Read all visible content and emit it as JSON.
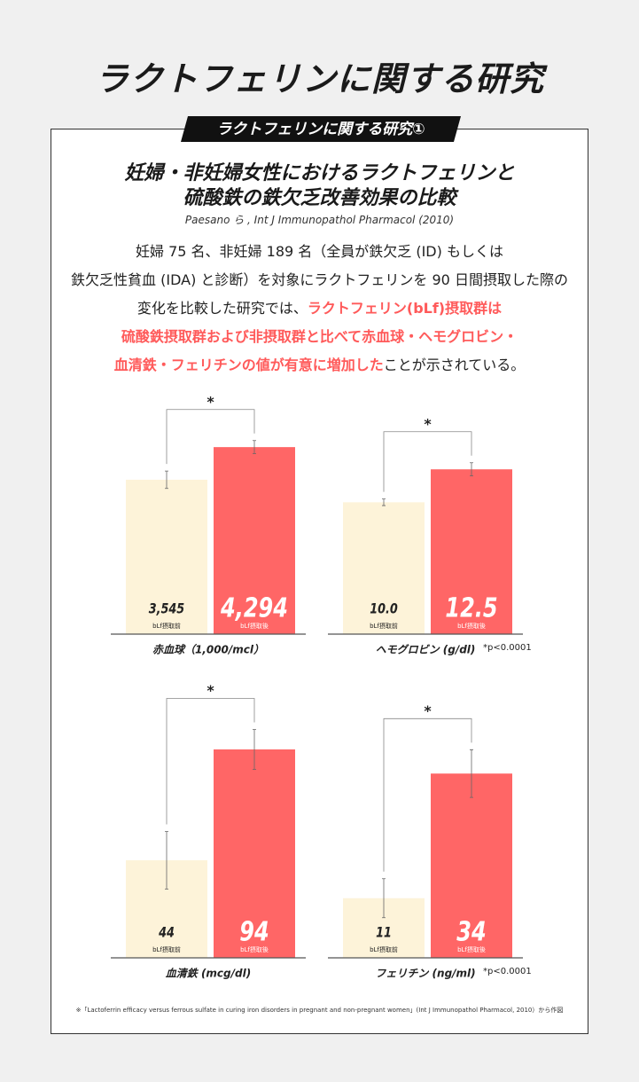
{
  "header": {
    "title": "ラクトフェリンに関する研究",
    "tab": "ラクトフェリンに関する研究①"
  },
  "study": {
    "title_lines": [
      "妊婦・非妊婦女性におけるラクトフェリンと",
      "硫酸鉄の鉄欠乏改善効果の比較"
    ],
    "citation": "Paesano ら , Int J Immunopathol Pharmacol (2010)",
    "paragraph": [
      [
        {
          "text": "妊婦 75 名、非妊婦 189 名（全員が鉄欠乏 (ID) もしくは",
          "highlight": false
        }
      ],
      [
        {
          "text": "鉄欠乏性貧血 (IDA) と診断）を対象にラクトフェリンを 90 日間摂取した際の",
          "highlight": false
        }
      ],
      [
        {
          "text": "変化を比較した研究では、",
          "highlight": false
        },
        {
          "text": "ラクトフェリン(bLf)摂取群は",
          "highlight": true
        }
      ],
      [
        {
          "text": "硫酸鉄摂取群および非摂取群と比べて赤血球・ヘモグロビン・",
          "highlight": true
        }
      ],
      [
        {
          "text": "血清鉄・フェリチンの値が有意に増加した",
          "highlight": true
        },
        {
          "text": "ことが示されている。",
          "highlight": false
        }
      ]
    ],
    "footnote": "※「Lactoferrin efficacy versus ferrous sulfate in curing iron disorders in pregnant and non-pregnant women」(Int J Immunopathol Pharmacol, 2010）から作図"
  },
  "chart_data": [
    {
      "type": "bar",
      "categories": [
        "bLf摂取前",
        "bLf摂取後"
      ],
      "values": [
        3545,
        4294
      ],
      "value_labels": [
        "3,545",
        "4,294"
      ],
      "errors": [
        200,
        150
      ],
      "colors": [
        "#fdf3d9",
        "#ff6666"
      ],
      "ylim": [
        0,
        5600
      ],
      "x_label": "赤血球（1,000/mcl）",
      "significance": "*"
    },
    {
      "type": "bar",
      "categories": [
        "bLf摂取前",
        "bLf摂取後"
      ],
      "values": [
        10,
        12.5
      ],
      "value_labels": [
        "10.0",
        "12.5"
      ],
      "errors": [
        0.25,
        0.5
      ],
      "colors": [
        "#fdf3d9",
        "#ff6666"
      ],
      "ylim": [
        0,
        18.5
      ],
      "x_label": "ヘモグロビン (g/dl)",
      "significance": "*",
      "note": "*p<0.0001"
    },
    {
      "type": "bar",
      "categories": [
        "bLf摂取前",
        "bLf摂取後"
      ],
      "values": [
        44,
        94
      ],
      "errors": [
        13,
        9
      ],
      "colors": [
        "#fdf3d9",
        "#ff6666"
      ],
      "ylim": [
        0,
        110
      ],
      "x_label": "血清鉄 (mcg/dl)",
      "significance": "*"
    },
    {
      "type": "bar",
      "categories": [
        "bLf摂取前",
        "bLf摂取後"
      ],
      "values": [
        11,
        34
      ],
      "errors": [
        3.6,
        4.4
      ],
      "colors": [
        "#fdf3d9",
        "#ff6666"
      ],
      "ylim": [
        0,
        45
      ],
      "x_label": "フェリチン (ng/ml)",
      "significance": "*",
      "note": "*p<0.0001"
    }
  ]
}
